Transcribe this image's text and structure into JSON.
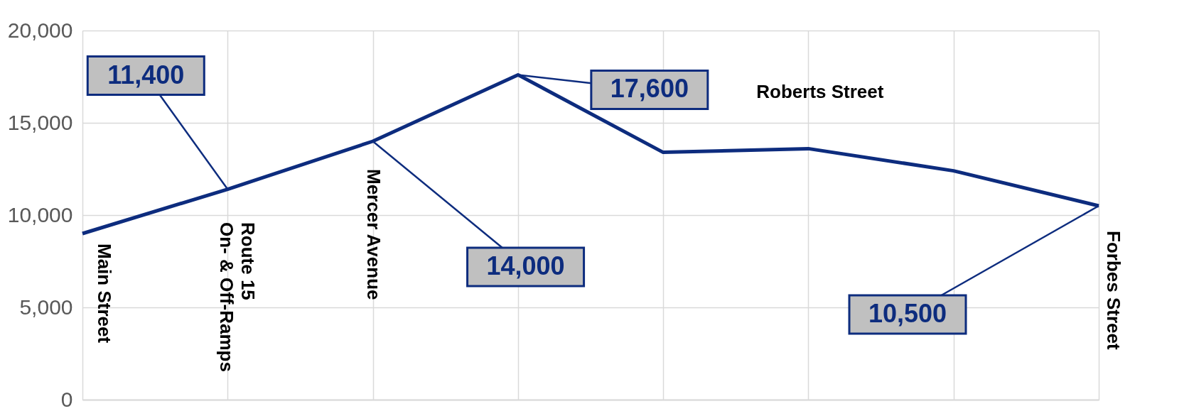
{
  "chart_data": {
    "type": "line",
    "categories": [
      null,
      null,
      null,
      null,
      null,
      null,
      null,
      null
    ],
    "series": [
      {
        "color": "#0d2c7e",
        "values": [
          9000,
          11400,
          14000,
          17600,
          13400,
          13600,
          12400,
          10500
        ],
        "value_labels": [
          null,
          "11,400",
          "14,000",
          "17,600",
          null,
          null,
          null,
          "10,500"
        ]
      }
    ],
    "ylim": [
      0,
      20000
    ],
    "yticks": [
      0,
      {
        "value": 5000,
        "label": "5,000"
      },
      {
        "value": 10000,
        "label": "10,000"
      },
      {
        "value": 15000,
        "label": "15,000"
      },
      {
        "value": 20000,
        "label": "20,000"
      }
    ],
    "grid": true,
    "tick_labels": "y",
    "marker": "none",
    "line_style": "solid",
    "annotations": [
      "Main Street",
      "Route 15\nOn- & Off-Ramps",
      "Mercer Avenue",
      "Roberts Street",
      "Forbes Street"
    ]
  }
}
